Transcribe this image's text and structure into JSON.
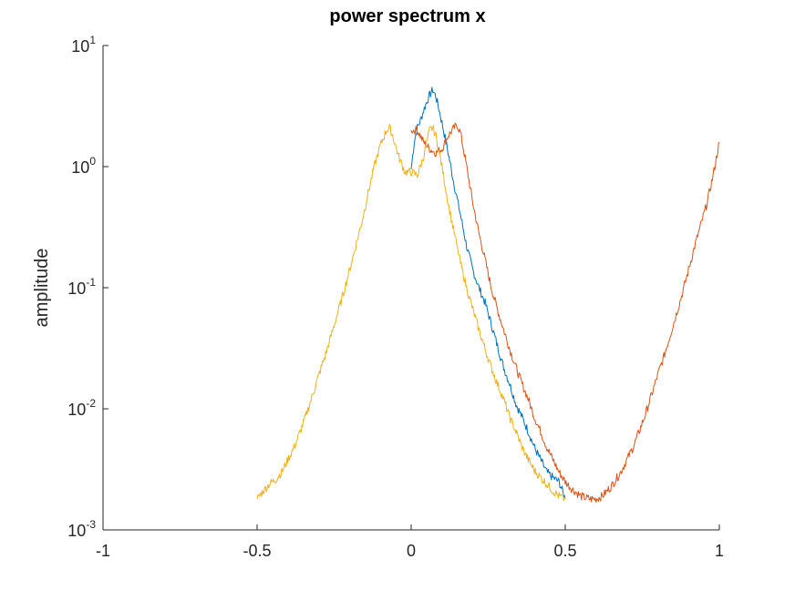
{
  "chart_data": {
    "type": "line",
    "title": "power spectrum x",
    "xlabel": "",
    "ylabel": "amplitude",
    "xlim": [
      -1,
      1
    ],
    "ylim": [
      0.001,
      10
    ],
    "yscale": "log",
    "grid": false,
    "legend": null,
    "x_ticks": [
      -1,
      -0.5,
      0,
      0.5,
      1
    ],
    "x_tick_labels": [
      "-1",
      "-0.5",
      "0",
      "0.5",
      "1"
    ],
    "y_ticks": [
      0.001,
      0.01,
      0.1,
      1,
      10
    ],
    "y_tick_labels": [
      {
        "base": "10",
        "exp": "-3"
      },
      {
        "base": "10",
        "exp": "-2"
      },
      {
        "base": "10",
        "exp": "-1"
      },
      {
        "base": "10",
        "exp": "0"
      },
      {
        "base": "10",
        "exp": "1"
      }
    ],
    "series": [
      {
        "color": "#0072BD",
        "x": [
          0,
          0.01,
          0.02,
          0.03,
          0.04,
          0.05,
          0.06,
          0.07,
          0.08,
          0.09,
          0.1,
          0.12,
          0.14,
          0.16,
          0.18,
          0.2,
          0.22,
          0.24,
          0.26,
          0.28,
          0.3,
          0.32,
          0.34,
          0.36,
          0.38,
          0.4,
          0.42,
          0.44,
          0.46,
          0.48,
          0.5
        ],
        "y": [
          0.95,
          1.6,
          2.1,
          2.4,
          2.9,
          3.4,
          3.9,
          4.3,
          3.8,
          3.0,
          2.3,
          1.3,
          0.7,
          0.4,
          0.22,
          0.14,
          0.1,
          0.075,
          0.05,
          0.033,
          0.022,
          0.016,
          0.011,
          0.0085,
          0.0065,
          0.0048,
          0.0038,
          0.003,
          0.0027,
          0.0025,
          0.0018
        ]
      },
      {
        "color": "#D95319",
        "x": [
          0,
          0.02,
          0.04,
          0.06,
          0.08,
          0.1,
          0.12,
          0.14,
          0.15,
          0.16,
          0.18,
          0.2,
          0.22,
          0.24,
          0.26,
          0.28,
          0.3,
          0.32,
          0.34,
          0.36,
          0.38,
          0.4,
          0.42,
          0.44,
          0.46,
          0.48,
          0.5,
          0.52,
          0.55,
          0.58,
          0.6,
          0.62,
          0.65,
          0.68,
          0.7,
          0.72,
          0.74,
          0.76,
          0.78,
          0.8,
          0.82,
          0.84,
          0.86,
          0.88,
          0.9,
          0.92,
          0.94,
          0.96,
          0.98,
          1.0
        ],
        "y": [
          2.0,
          2.0,
          1.6,
          1.4,
          1.3,
          1.4,
          1.8,
          2.1,
          2.2,
          1.9,
          1.0,
          0.5,
          0.28,
          0.17,
          0.1,
          0.066,
          0.045,
          0.031,
          0.022,
          0.016,
          0.012,
          0.0085,
          0.0065,
          0.0048,
          0.0038,
          0.003,
          0.0025,
          0.0022,
          0.0019,
          0.0018,
          0.0018,
          0.0019,
          0.0023,
          0.003,
          0.0038,
          0.0048,
          0.0065,
          0.009,
          0.013,
          0.019,
          0.027,
          0.04,
          0.06,
          0.09,
          0.14,
          0.22,
          0.33,
          0.5,
          0.85,
          1.6
        ]
      },
      {
        "color": "#EDB120",
        "x": [
          -0.5,
          -0.48,
          -0.46,
          -0.44,
          -0.42,
          -0.4,
          -0.38,
          -0.36,
          -0.34,
          -0.32,
          -0.3,
          -0.28,
          -0.26,
          -0.24,
          -0.22,
          -0.2,
          -0.18,
          -0.16,
          -0.14,
          -0.12,
          -0.1,
          -0.08,
          -0.07,
          -0.06,
          -0.04,
          -0.02,
          0,
          0.02,
          0.04,
          0.06,
          0.07,
          0.08,
          0.1,
          0.12,
          0.14,
          0.16,
          0.18,
          0.2,
          0.22,
          0.24,
          0.26,
          0.28,
          0.3,
          0.32,
          0.34,
          0.36,
          0.38,
          0.4,
          0.42,
          0.44,
          0.46,
          0.48,
          0.5
        ],
        "y": [
          0.0018,
          0.0021,
          0.0024,
          0.0026,
          0.003,
          0.0038,
          0.0048,
          0.0065,
          0.009,
          0.013,
          0.019,
          0.027,
          0.04,
          0.06,
          0.09,
          0.14,
          0.22,
          0.35,
          0.6,
          1.0,
          1.5,
          2.0,
          2.1,
          1.8,
          1.2,
          0.9,
          0.9,
          0.85,
          1.2,
          2.0,
          2.1,
          1.8,
          1.0,
          0.5,
          0.28,
          0.16,
          0.1,
          0.066,
          0.045,
          0.031,
          0.022,
          0.016,
          0.012,
          0.0085,
          0.0065,
          0.0048,
          0.0038,
          0.0031,
          0.0027,
          0.0024,
          0.0021,
          0.0019,
          0.0018
        ]
      }
    ]
  }
}
